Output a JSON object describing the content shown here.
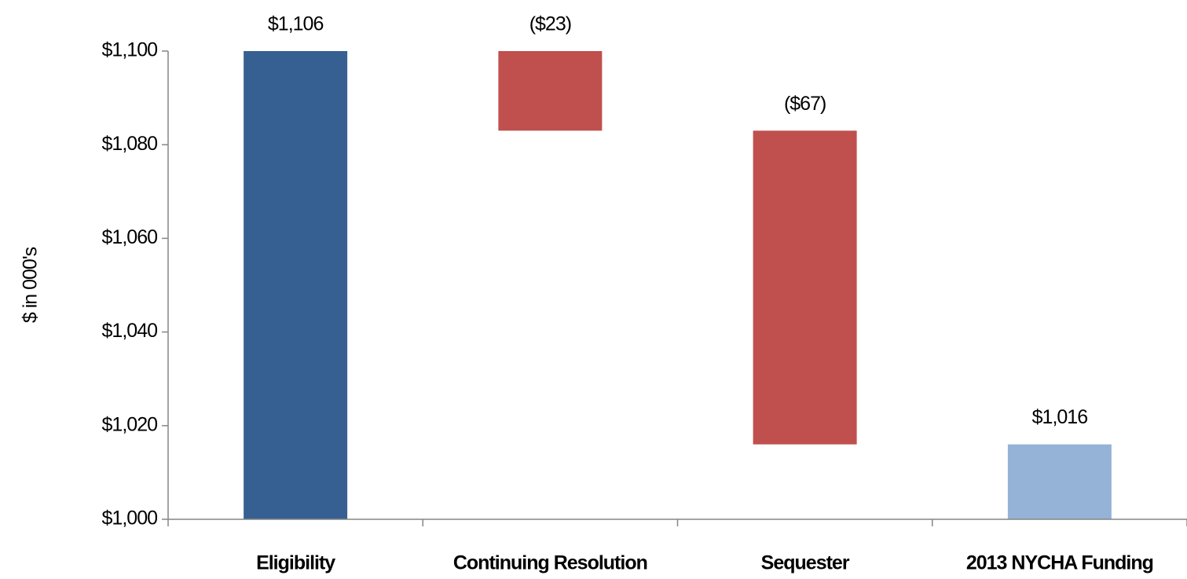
{
  "chart_data": {
    "type": "waterfall",
    "y_label": "$ in 000's",
    "categories": [
      "Eligibility",
      "Continuing Resolution",
      "Sequester",
      "2013 NYCHA Funding"
    ],
    "values": [
      1106,
      -23,
      -67,
      1016
    ],
    "value_labels": [
      "$1,106",
      "($23)",
      "($67)",
      "$1,016"
    ],
    "colors": [
      "#366092",
      "#c0504d",
      "#c0504d",
      "#95b3d7"
    ],
    "ylim": [
      1000,
      1100
    ],
    "yticks": [
      {
        "value": 1000,
        "label": "$1,000"
      },
      {
        "value": 1020,
        "label": "$1,020"
      },
      {
        "value": 1040,
        "label": "$1,040"
      },
      {
        "value": 1060,
        "label": "$1,060"
      },
      {
        "value": 1080,
        "label": "$1,080"
      },
      {
        "value": 1100,
        "label": "$1,100"
      }
    ],
    "grid": false
  }
}
